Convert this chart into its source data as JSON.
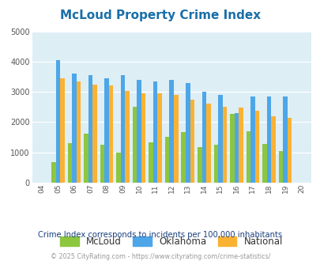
{
  "title": "McLoud Property Crime Index",
  "years": [
    2004,
    2005,
    2006,
    2007,
    2008,
    2009,
    2010,
    2011,
    2012,
    2013,
    2014,
    2015,
    2016,
    2017,
    2018,
    2019,
    2020
  ],
  "year_labels": [
    "04",
    "05",
    "06",
    "07",
    "08",
    "09",
    "10",
    "11",
    "12",
    "13",
    "14",
    "15",
    "16",
    "17",
    "18",
    "19",
    "20"
  ],
  "mcloud": [
    0,
    680,
    1300,
    1620,
    1250,
    990,
    2520,
    1340,
    1510,
    1680,
    1170,
    1260,
    2270,
    1710,
    1270,
    1040,
    0
  ],
  "oklahoma": [
    0,
    4040,
    3600,
    3540,
    3450,
    3560,
    3400,
    3350,
    3400,
    3290,
    3010,
    2900,
    2300,
    2850,
    2860,
    2840,
    0
  ],
  "national": [
    0,
    3450,
    3340,
    3250,
    3210,
    3040,
    2960,
    2940,
    2900,
    2740,
    2620,
    2510,
    2470,
    2370,
    2200,
    2130,
    0
  ],
  "mcloud_color": "#8dc63f",
  "oklahoma_color": "#4da6e8",
  "national_color": "#f9b234",
  "plot_bg_color": "#ddeef5",
  "ylim": [
    0,
    5000
  ],
  "yticks": [
    0,
    1000,
    2000,
    3000,
    4000,
    5000
  ],
  "subtitle": "Crime Index corresponds to incidents per 100,000 inhabitants",
  "footer": "© 2025 CityRating.com - https://www.cityrating.com/crime-statistics/",
  "title_color": "#1a6fa8",
  "subtitle_color": "#1a4080",
  "footer_color": "#999999",
  "legend_labels": [
    "McLoud",
    "Oklahoma",
    "National"
  ]
}
